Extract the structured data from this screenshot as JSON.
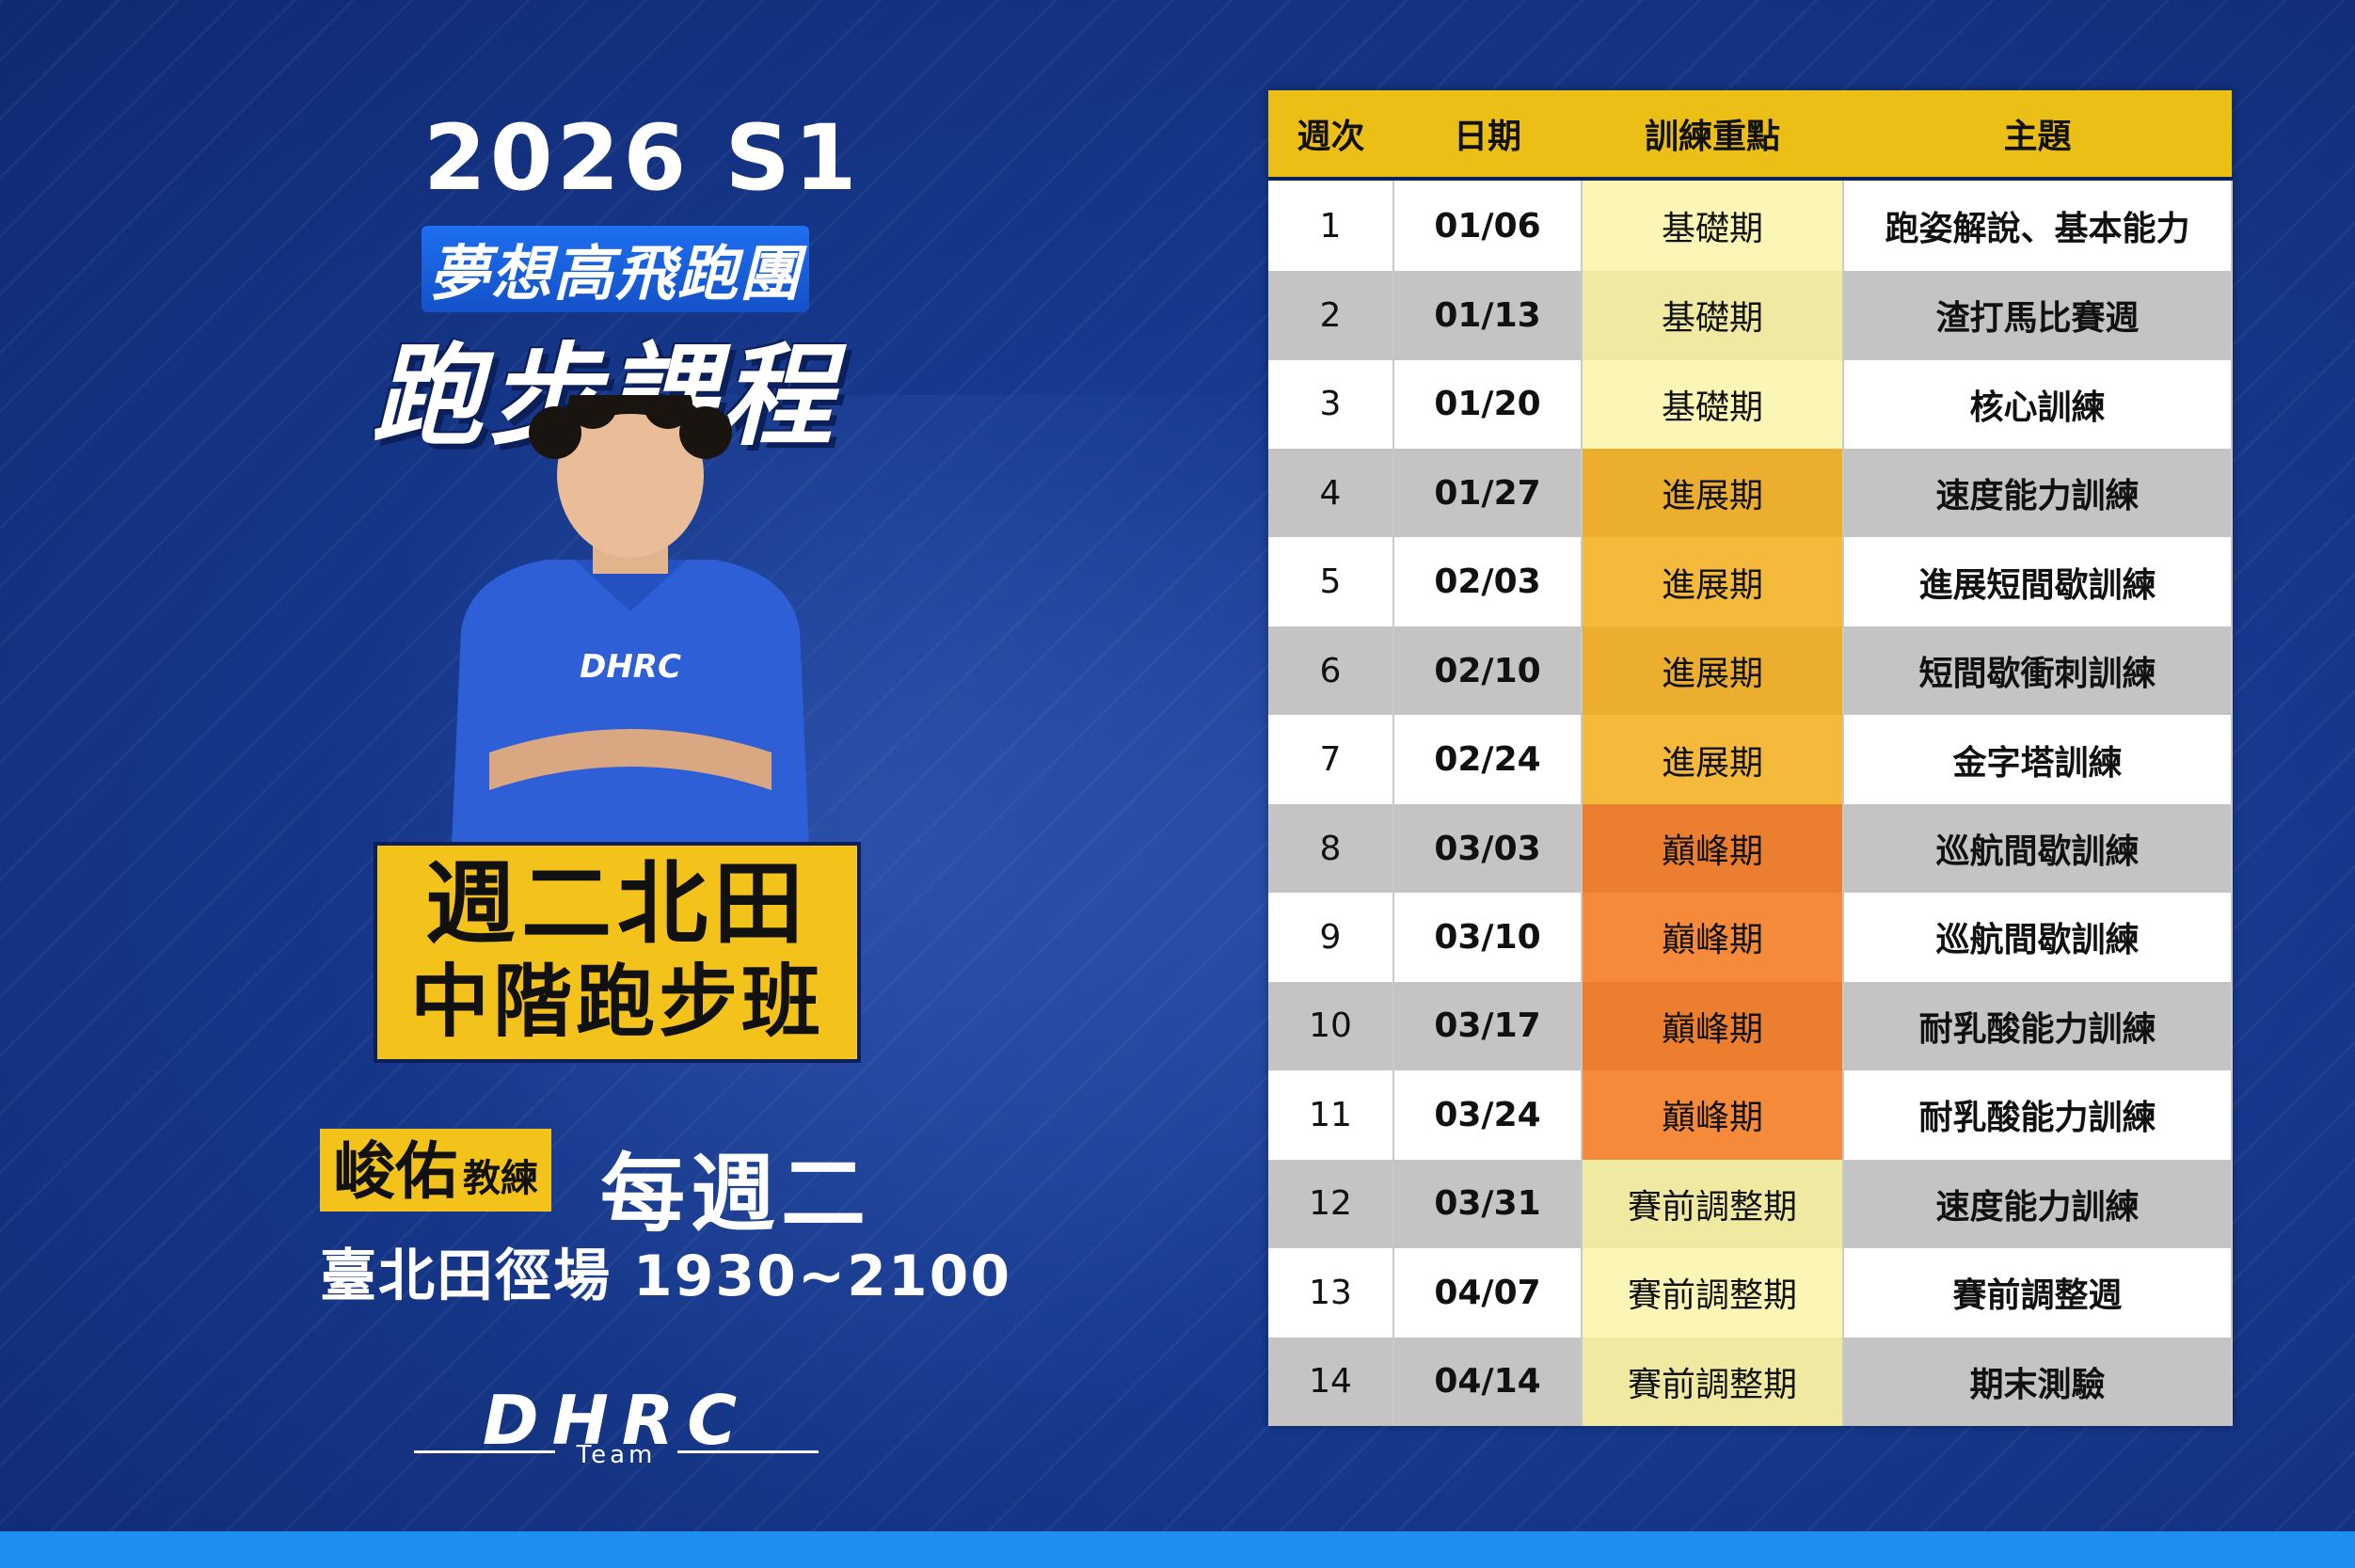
{
  "header": {
    "year_season": "2026 S1",
    "club_name": "夢想高飛跑團",
    "course_title": "跑步課程"
  },
  "class_info": {
    "line1": "週二北田",
    "line2": "中階跑步班",
    "coach_name": "峻佑",
    "coach_title": "教練",
    "weekday": "每週二",
    "venue_time": "臺北田徑場 1930~2100"
  },
  "logo": {
    "brand": "DHRC",
    "sub": "Team"
  },
  "colors": {
    "accent_yellow": "#f3c21b",
    "bg_blue": "#13307a",
    "bar_blue": "#1e8ff0"
  },
  "table": {
    "headers": [
      "週次",
      "日期",
      "訓練重點",
      "主題"
    ],
    "rows": [
      {
        "week": "1",
        "date": "01/06",
        "phase": "基礎期",
        "phase_key": "base",
        "topic": "跑姿解說、基本能力"
      },
      {
        "week": "2",
        "date": "01/13",
        "phase": "基礎期",
        "phase_key": "base",
        "topic": "渣打馬比賽週"
      },
      {
        "week": "3",
        "date": "01/20",
        "phase": "基礎期",
        "phase_key": "base",
        "topic": "核心訓練"
      },
      {
        "week": "4",
        "date": "01/27",
        "phase": "進展期",
        "phase_key": "prog",
        "topic": "速度能力訓練"
      },
      {
        "week": "5",
        "date": "02/03",
        "phase": "進展期",
        "phase_key": "prog",
        "topic": "進展短間歇訓練"
      },
      {
        "week": "6",
        "date": "02/10",
        "phase": "進展期",
        "phase_key": "prog",
        "topic": "短間歇衝刺訓練"
      },
      {
        "week": "7",
        "date": "02/24",
        "phase": "進展期",
        "phase_key": "prog",
        "topic": "金字塔訓練"
      },
      {
        "week": "8",
        "date": "03/03",
        "phase": "巔峰期",
        "phase_key": "peak",
        "topic": "巡航間歇訓練"
      },
      {
        "week": "9",
        "date": "03/10",
        "phase": "巔峰期",
        "phase_key": "peak",
        "topic": "巡航間歇訓練"
      },
      {
        "week": "10",
        "date": "03/17",
        "phase": "巔峰期",
        "phase_key": "peak",
        "topic": "耐乳酸能力訓練"
      },
      {
        "week": "11",
        "date": "03/24",
        "phase": "巔峰期",
        "phase_key": "peak",
        "topic": "耐乳酸能力訓練"
      },
      {
        "week": "12",
        "date": "03/31",
        "phase": "賽前調整期",
        "phase_key": "taper",
        "topic": "速度能力訓練"
      },
      {
        "week": "13",
        "date": "04/07",
        "phase": "賽前調整期",
        "phase_key": "taper",
        "topic": "賽前調整週"
      },
      {
        "week": "14",
        "date": "04/14",
        "phase": "賽前調整期",
        "phase_key": "taper",
        "topic": "期末測驗"
      }
    ]
  }
}
